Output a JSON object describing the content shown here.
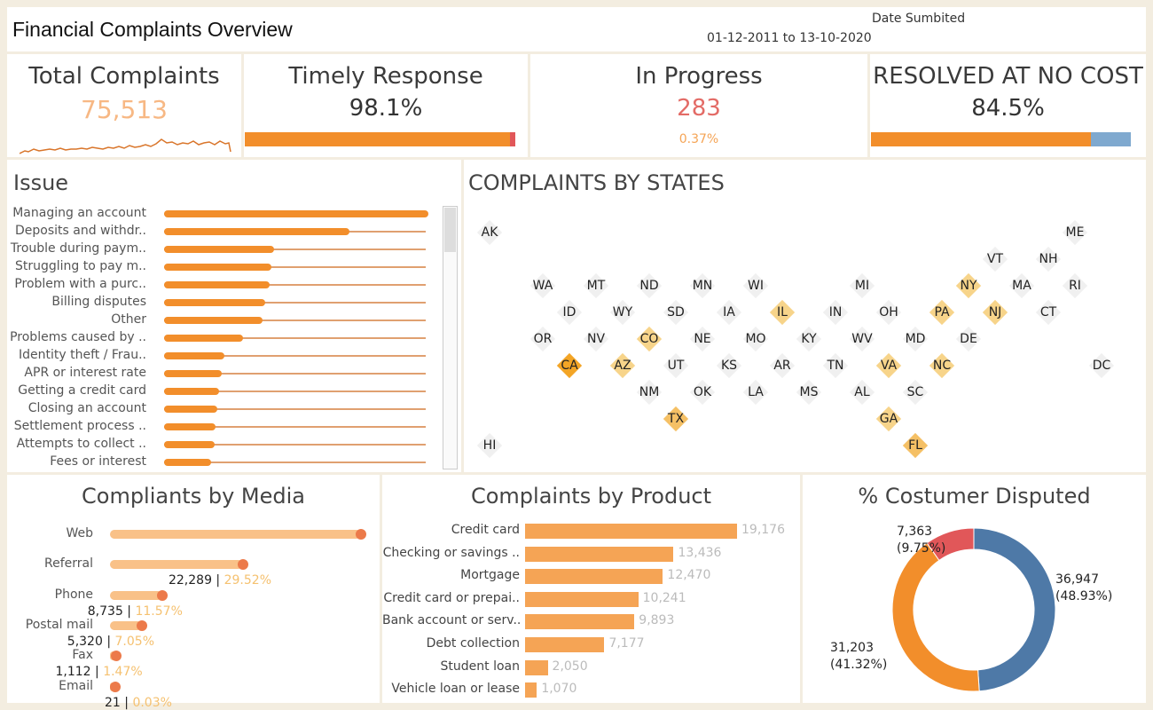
{
  "header": {
    "title": "Financial Complaints Overview",
    "date_label": "Date Sumbited",
    "date_range": "01-12-2011 to 13-10-2020"
  },
  "kpis": {
    "total": {
      "title": "Total Complaints",
      "value": "75,513"
    },
    "timely": {
      "title": "Timely Response",
      "value": "98.1%",
      "fraction": 0.981
    },
    "progress": {
      "title": "In Progress",
      "value": "283",
      "pct": "0.37%"
    },
    "resolved": {
      "title": "RESOLVED AT NO COST",
      "value": "84.5%",
      "fraction": 0.845
    }
  },
  "colors": {
    "orange": "#f28e2b",
    "dark_orange": "#e15759",
    "light_orange": "#f9c188",
    "blue": "#4e79a7",
    "red": "#e15759",
    "peach": "#f5a455",
    "pct_yellow": "#f5c170"
  },
  "chart_data": [
    {
      "type": "bar",
      "title": "Issue",
      "categories": [
        "Managing an account",
        "Deposits and withdr..",
        "Trouble during paym..",
        "Struggling to pay m..",
        "Problem with a purc..",
        "Billing disputes",
        "Other",
        "Problems caused by ..",
        "Identity theft / Frau..",
        "APR or interest rate",
        "Getting a credit card",
        "Closing an account",
        "Settlement process ..",
        "Attempts to collect ..",
        "Fees or interest"
      ],
      "values": [
        300,
        210,
        125,
        122,
        120,
        115,
        112,
        90,
        68,
        65,
        62,
        60,
        58,
        57,
        53
      ]
    },
    {
      "type": "scatter",
      "title": "COMPLAINTS BY STATES",
      "states": [
        {
          "s": "AK",
          "r": 0,
          "c": 0,
          "h": 0
        },
        {
          "s": "ME",
          "r": 0,
          "c": 11,
          "h": 0
        },
        {
          "s": "VT",
          "r": 1,
          "c": 9.5,
          "h": 0
        },
        {
          "s": "NH",
          "r": 1,
          "c": 10.5,
          "h": 0
        },
        {
          "s": "WA",
          "r": 2,
          "c": 1,
          "h": 0
        },
        {
          "s": "MT",
          "r": 2,
          "c": 2,
          "h": 0
        },
        {
          "s": "ND",
          "r": 2,
          "c": 3,
          "h": 0
        },
        {
          "s": "MN",
          "r": 2,
          "c": 4,
          "h": 0
        },
        {
          "s": "WI",
          "r": 2,
          "c": 5,
          "h": 0
        },
        {
          "s": "MI",
          "r": 2,
          "c": 7,
          "h": 0
        },
        {
          "s": "NY",
          "r": 2,
          "c": 9,
          "h": 1
        },
        {
          "s": "MA",
          "r": 2,
          "c": 10,
          "h": 0
        },
        {
          "s": "RI",
          "r": 2,
          "c": 11,
          "h": 0
        },
        {
          "s": "ID",
          "r": 3,
          "c": 1.5,
          "h": 0
        },
        {
          "s": "WY",
          "r": 3,
          "c": 2.5,
          "h": 0
        },
        {
          "s": "SD",
          "r": 3,
          "c": 3.5,
          "h": 0
        },
        {
          "s": "IA",
          "r": 3,
          "c": 4.5,
          "h": 0
        },
        {
          "s": "IL",
          "r": 3,
          "c": 5.5,
          "h": 1
        },
        {
          "s": "IN",
          "r": 3,
          "c": 6.5,
          "h": 0
        },
        {
          "s": "OH",
          "r": 3,
          "c": 7.5,
          "h": 0
        },
        {
          "s": "PA",
          "r": 3,
          "c": 8.5,
          "h": 1
        },
        {
          "s": "NJ",
          "r": 3,
          "c": 9.5,
          "h": 1
        },
        {
          "s": "CT",
          "r": 3,
          "c": 10.5,
          "h": 0
        },
        {
          "s": "OR",
          "r": 4,
          "c": 1,
          "h": 0
        },
        {
          "s": "NV",
          "r": 4,
          "c": 2,
          "h": 0
        },
        {
          "s": "CO",
          "r": 4,
          "c": 3,
          "h": 1
        },
        {
          "s": "NE",
          "r": 4,
          "c": 4,
          "h": 0
        },
        {
          "s": "MO",
          "r": 4,
          "c": 5,
          "h": 0
        },
        {
          "s": "KY",
          "r": 4,
          "c": 6,
          "h": 0
        },
        {
          "s": "WV",
          "r": 4,
          "c": 7,
          "h": 0
        },
        {
          "s": "MD",
          "r": 4,
          "c": 8,
          "h": 0
        },
        {
          "s": "DE",
          "r": 4,
          "c": 9,
          "h": 0
        },
        {
          "s": "CA",
          "r": 5,
          "c": 1.5,
          "h": 3
        },
        {
          "s": "AZ",
          "r": 5,
          "c": 2.5,
          "h": 1
        },
        {
          "s": "UT",
          "r": 5,
          "c": 3.5,
          "h": 0
        },
        {
          "s": "KS",
          "r": 5,
          "c": 4.5,
          "h": 0
        },
        {
          "s": "AR",
          "r": 5,
          "c": 5.5,
          "h": 0
        },
        {
          "s": "TN",
          "r": 5,
          "c": 6.5,
          "h": 0
        },
        {
          "s": "VA",
          "r": 5,
          "c": 7.5,
          "h": 1
        },
        {
          "s": "NC",
          "r": 5,
          "c": 8.5,
          "h": 1
        },
        {
          "s": "DC",
          "r": 5,
          "c": 11.5,
          "h": 0
        },
        {
          "s": "NM",
          "r": 6,
          "c": 3,
          "h": 0
        },
        {
          "s": "OK",
          "r": 6,
          "c": 4,
          "h": 0
        },
        {
          "s": "LA",
          "r": 6,
          "c": 5,
          "h": 0
        },
        {
          "s": "MS",
          "r": 6,
          "c": 6,
          "h": 0
        },
        {
          "s": "AL",
          "r": 6,
          "c": 7,
          "h": 0
        },
        {
          "s": "SC",
          "r": 6,
          "c": 8,
          "h": 0
        },
        {
          "s": "TX",
          "r": 7,
          "c": 3.5,
          "h": 2
        },
        {
          "s": "GA",
          "r": 7,
          "c": 7.5,
          "h": 1
        },
        {
          "s": "HI",
          "r": 8,
          "c": 0,
          "h": 0
        },
        {
          "s": "FL",
          "r": 8,
          "c": 8,
          "h": 2
        }
      ]
    },
    {
      "type": "bar",
      "title": "Compliants by Media",
      "categories": [
        "Web",
        "Referral",
        "Phone",
        "Postal mail",
        "Fax",
        "Email"
      ],
      "values": [
        42056,
        22289,
        8735,
        5320,
        1112,
        21
      ],
      "labels": [
        "",
        "22,289",
        "8,735",
        "5,320",
        "1,112",
        "21"
      ],
      "pcts": [
        "",
        "29.52%",
        "11.57%",
        "7.05%",
        "1.47%",
        "0.03%"
      ]
    },
    {
      "type": "bar",
      "title": "Complaints by Product",
      "categories": [
        "Credit card",
        "Checking or savings ..",
        "Mortgage",
        "Credit card or prepai..",
        "Bank account or serv..",
        "Debt collection",
        "Student loan",
        "Vehicle loan or lease"
      ],
      "values": [
        19176,
        13436,
        12470,
        10241,
        9893,
        7177,
        2050,
        1070
      ],
      "labels": [
        "19,176",
        "13,436",
        "12,470",
        "10,241",
        "9,893",
        "7,177",
        "2,050",
        "1,070"
      ]
    },
    {
      "type": "pie",
      "title": "% Costumer Disputed",
      "slices": [
        {
          "value": 36947,
          "label": "36,947",
          "pct": "(48.93%)",
          "color": "#4e79a7"
        },
        {
          "value": 31203,
          "label": "31,203",
          "pct": "(41.32%)",
          "color": "#f28e2b"
        },
        {
          "value": 7363,
          "label": "7,363",
          "pct": "(9.75%)",
          "color": "#e15759"
        }
      ]
    }
  ]
}
